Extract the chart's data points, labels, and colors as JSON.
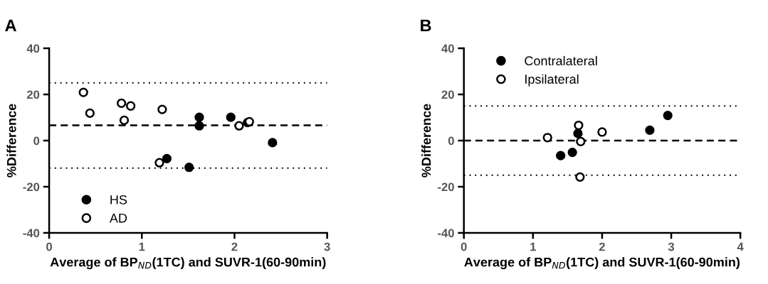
{
  "chart_data": [
    {
      "type": "scatter",
      "title": "A",
      "xlabel": "Average of BP$_{ND}$(1TC) and SUVR-1(60-90min)",
      "ylabel": "%Difference",
      "xlim": [
        0,
        3
      ],
      "xticks": [
        0,
        1,
        2,
        3
      ],
      "ylim": [
        -40,
        40
      ],
      "yticks": [
        -40,
        -20,
        0,
        20,
        40
      ],
      "grid": false,
      "legend": "bottom left",
      "marker": "circle",
      "series": [
        {
          "name": "HS",
          "color": "#000000",
          "x": [
            1.62,
            1.62,
            1.96,
            2.14,
            2.41,
            1.27,
            1.51
          ],
          "values": [
            10.1,
            6.4,
            10.1,
            7.8,
            -0.9,
            -7.8,
            -11.6
          ]
        },
        {
          "name": "AD",
          "color": "#000000",
          "x": [
            0.37,
            0.44,
            0.78,
            0.88,
            0.81,
            1.22,
            1.19,
            2.05,
            2.16
          ],
          "values": [
            20.9,
            11.9,
            16.2,
            15.0,
            8.8,
            13.5,
            -9.6,
            6.4,
            8.2
          ]
        }
      ],
      "ref_lines": [
        {
          "axis": "y",
          "value": 25.0,
          "line_style": "dotted"
        },
        {
          "axis": "y",
          "value": 6.6,
          "line_style": "dashed"
        },
        {
          "axis": "y",
          "value": -11.9,
          "line_style": "dotted"
        }
      ]
    },
    {
      "type": "scatter",
      "title": "B",
      "xlabel": "Average of BP$_{ND}$(1TC) and SUVR-1(60-90min)",
      "ylabel": "%Difference",
      "xlim": [
        0,
        4
      ],
      "xticks": [
        0,
        1,
        2,
        3,
        4
      ],
      "ylim": [
        -40,
        40
      ],
      "yticks": [
        -40,
        -20,
        0,
        20,
        40
      ],
      "grid": false,
      "legend": "top left",
      "marker": "circle",
      "series": [
        {
          "name": "Contralateral",
          "color": "#000000",
          "x": [
            1.4,
            1.57,
            1.65,
            2.69,
            2.95
          ],
          "values": [
            -6.5,
            -5.1,
            3.1,
            4.5,
            10.9
          ]
        },
        {
          "name": "Ipsilateral",
          "color": "#000000",
          "x": [
            1.21,
            1.66,
            1.69,
            2.0,
            1.68
          ],
          "values": [
            1.3,
            6.6,
            -0.4,
            3.7,
            -15.8
          ]
        }
      ],
      "ref_lines": [
        {
          "axis": "y",
          "value": 15,
          "line_style": "dotted"
        },
        {
          "axis": "y",
          "value": 0,
          "line_style": "dashed"
        },
        {
          "axis": "y",
          "value": -15,
          "line_style": "dotted"
        }
      ]
    }
  ]
}
